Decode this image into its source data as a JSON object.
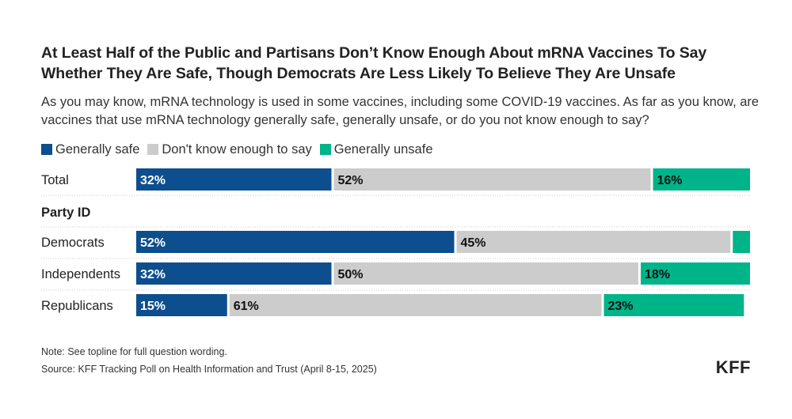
{
  "title": "At Least Half of the Public and Partisans Don’t Know Enough About mRNA Vaccines To Say Whether They Are Safe, Though Democrats Are Less Likely To Believe They Are Unsafe",
  "subtitle": "As you may know, mRNA technology is used in some vaccines, including some COVID-19 vaccines. As far as you know, are vaccines that use mRNA technology generally safe, generally unsafe, or do you not know enough to say?",
  "legend": [
    {
      "label": "Generally safe",
      "color": "#0d4e8f"
    },
    {
      "label": "Don't know enough to say",
      "color": "#cccccc"
    },
    {
      "label": "Generally unsafe",
      "color": "#00b48a"
    }
  ],
  "chart_data": {
    "type": "bar",
    "orientation": "horizontal-stacked",
    "categories": [
      "Total",
      "Democrats",
      "Independents",
      "Republicans"
    ],
    "group_label": "Party ID",
    "series": [
      {
        "name": "Generally safe",
        "values": [
          32,
          52,
          32,
          15
        ],
        "labels": [
          "32%",
          "52%",
          "32%",
          "15%"
        ]
      },
      {
        "name": "Don't know enough to say",
        "values": [
          52,
          45,
          50,
          61
        ],
        "labels": [
          "52%",
          "45%",
          "50%",
          "61%"
        ]
      },
      {
        "name": "Generally unsafe",
        "values": [
          16,
          3,
          18,
          23
        ],
        "labels": [
          "16%",
          "",
          "18%",
          "23%"
        ]
      }
    ],
    "xlim": [
      0,
      100
    ]
  },
  "footer": {
    "note": "Note: See topline for full question wording.",
    "source": "Source: KFF Tracking Poll on Health Information and Trust (April 8-15, 2025)",
    "logo": "KFF"
  }
}
